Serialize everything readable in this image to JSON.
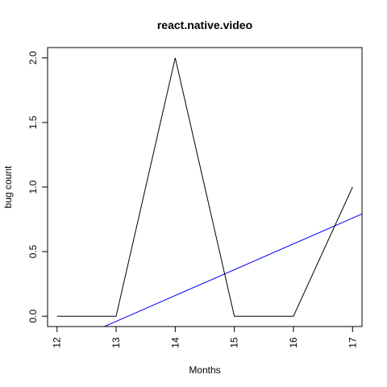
{
  "chart_data": {
    "type": "line",
    "title": "react.native.video",
    "xlabel": "Months",
    "ylabel": "bug count",
    "x": [
      12,
      13,
      14,
      15,
      16,
      17
    ],
    "series": [
      {
        "values": [
          0,
          0,
          2,
          0,
          0,
          1
        ],
        "color": "#000000"
      }
    ],
    "trend_line": {
      "color": "#0000ff",
      "intercept": -2.64,
      "slope": 0.2
    },
    "xlim": [
      11.84,
      17.16
    ],
    "ylim": [
      -0.08,
      2.08
    ],
    "xticks": [
      12,
      13,
      14,
      15,
      16,
      17
    ],
    "xtick_labels": [
      "12",
      "13",
      "14",
      "15",
      "16",
      "17"
    ],
    "yticks": [
      0,
      0.5,
      1,
      1.5,
      2
    ],
    "ytick_labels": [
      "0.0",
      "0.5",
      "1.0",
      "1.5",
      "2.0"
    ],
    "grid": false,
    "legend": "none"
  }
}
